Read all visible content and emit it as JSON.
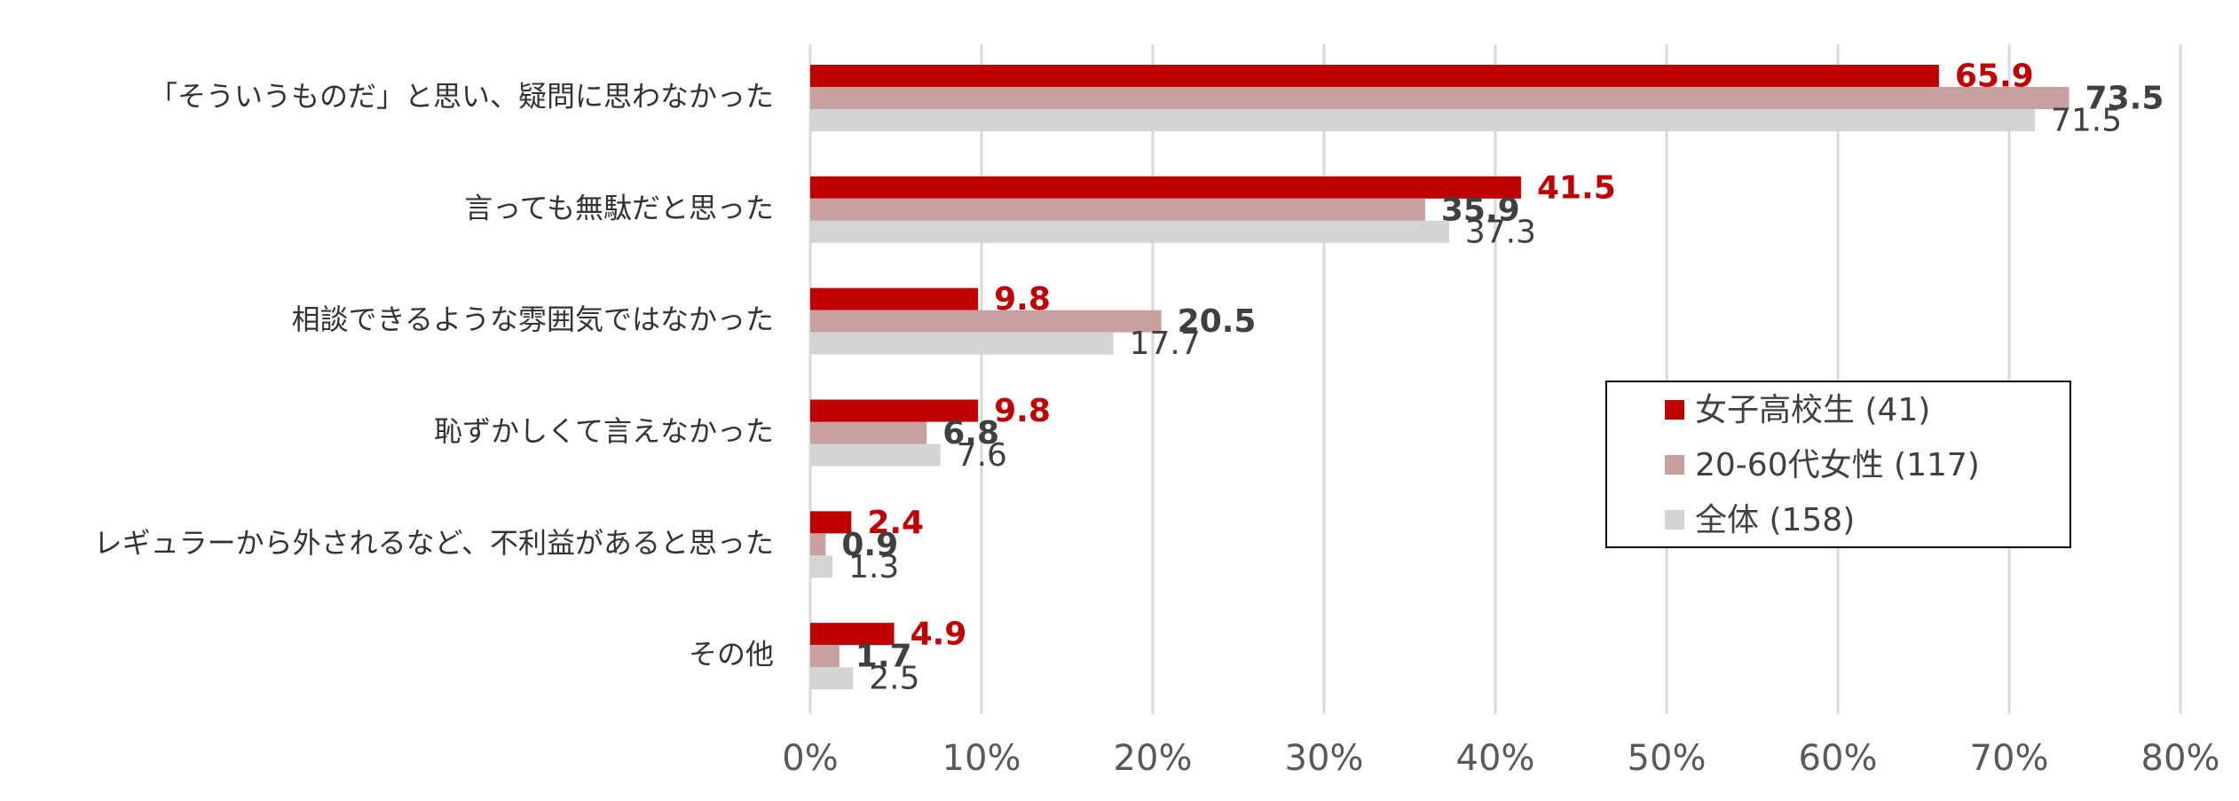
{
  "chart_data": {
    "type": "bar",
    "orientation": "horizontal",
    "categories": [
      "「そういうものだ」と思い、疑問に思わなかった",
      "言っても無駄だと思った",
      "相談できるような雰囲気ではなかった",
      "恥ずかしくて言えなかった",
      "レギュラーから外されるなど、不利益があると思った",
      "その他"
    ],
    "series": [
      {
        "name": "女子高校生 (41)",
        "color": "#c00000",
        "label_color": "#c00000",
        "label_bold": true,
        "values": [
          65.9,
          41.5,
          9.8,
          9.8,
          2.4,
          4.9
        ],
        "labels": [
          "65.9",
          "41.5",
          "9.8",
          "9.8",
          "2.4",
          "4.9"
        ]
      },
      {
        "name": "20-60代女性 (117)",
        "color": "#c9a0a0",
        "label_color": "#404040",
        "label_bold": true,
        "values": [
          73.5,
          35.9,
          20.5,
          6.8,
          0.9,
          1.7
        ],
        "labels": [
          "73.5",
          "35.9",
          "20.5",
          "6.8",
          "0.9",
          "1.7"
        ]
      },
      {
        "name": "全体 (158)",
        "color": "#d4d4d4",
        "label_color": "#404040",
        "label_bold": false,
        "values": [
          71.5,
          37.3,
          17.7,
          7.6,
          1.3,
          2.5
        ],
        "labels": [
          "71.5",
          "37.3",
          "17.7",
          "7.6",
          "1.3",
          "2.5"
        ]
      }
    ],
    "x_ticks": [
      0,
      10,
      20,
      30,
      40,
      50,
      60,
      70,
      80
    ],
    "x_tick_labels": [
      "0%",
      "10%",
      "20%",
      "30%",
      "40%",
      "50%",
      "60%",
      "70%",
      "80%"
    ],
    "xlim": [
      0,
      80
    ],
    "grid": true,
    "gridline_color": "#d9d9d9",
    "legend_position": "right"
  }
}
